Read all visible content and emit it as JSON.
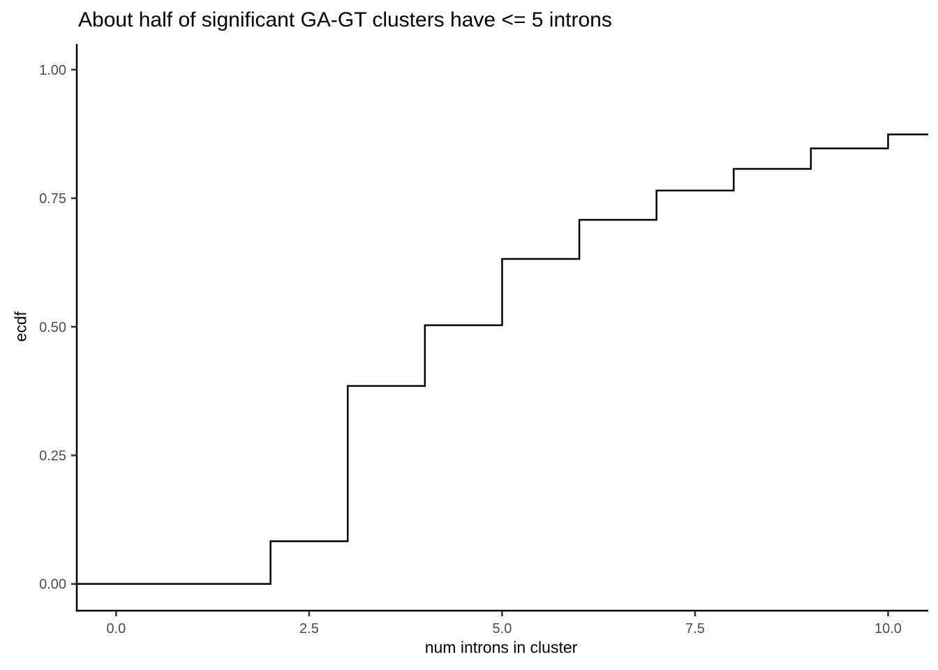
{
  "chart_data": {
    "type": "line",
    "subtype": "ecdf_step",
    "title": "About half of significant GA-GT clusters have <= 5 introns",
    "xlabel": "num introns in cluster",
    "ylabel": "ecdf",
    "x_tick_labels": [
      "0.0",
      "2.5",
      "5.0",
      "7.5",
      "10.0"
    ],
    "x_tick_values": [
      0,
      2.5,
      5,
      7.5,
      10
    ],
    "y_tick_labels": [
      "0.00",
      "0.25",
      "0.50",
      "0.75",
      "1.00"
    ],
    "y_tick_values": [
      0,
      0.25,
      0.5,
      0.75,
      1
    ],
    "xlim": [
      -0.51,
      10.52
    ],
    "ylim": [
      -0.052,
      1.05
    ],
    "grid": false,
    "legend_position": "none",
    "steps": {
      "start_value": 0.0,
      "x": [
        2,
        3,
        4,
        5,
        6,
        7,
        8,
        9,
        10
      ],
      "ecdf": [
        0.083,
        0.385,
        0.503,
        0.632,
        0.708,
        0.765,
        0.807,
        0.847,
        0.874
      ]
    },
    "colors": {
      "line": "#000000",
      "axis": "#000000",
      "tick_mark": "#333333",
      "tick_label": "#4d4d4d",
      "title": "#000000",
      "background": "#ffffff"
    }
  }
}
